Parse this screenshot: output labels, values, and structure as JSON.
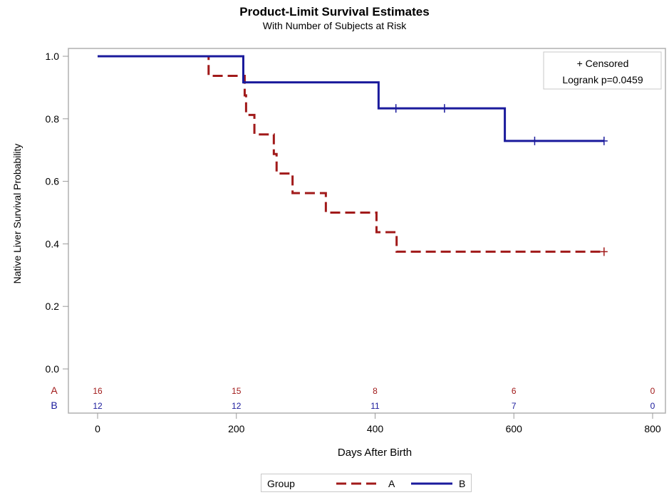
{
  "chart_data": {
    "type": "line",
    "title": "Product-Limit Survival Estimates",
    "subtitle": "With Number of Subjects at Risk",
    "xlabel": "Days After Birth",
    "ylabel": "Native Liver Survival Probability",
    "xlim": [
      0,
      800
    ],
    "ylim": [
      0,
      1
    ],
    "xticks": [
      "0",
      "200",
      "400",
      "600",
      "800"
    ],
    "xtick_values": [
      0,
      200,
      400,
      600,
      800
    ],
    "yticks": [
      "0.0",
      "0.2",
      "0.4",
      "0.6",
      "0.8",
      "1.0"
    ],
    "ytick_values": [
      0,
      0.2,
      0.4,
      0.6,
      0.8,
      1.0
    ],
    "grid": false,
    "inset": {
      "censored_label": "+ Censored",
      "logrank_label": "Logrank p=0.0459"
    },
    "legend": {
      "title": "Group",
      "position": "bottom",
      "entries": [
        "A",
        "B"
      ]
    },
    "series": [
      {
        "name": "A",
        "color": "#a11a1a",
        "style": "dashed",
        "steps": [
          {
            "x": 0,
            "y": 1.0
          },
          {
            "x": 160,
            "y": 0.9375
          },
          {
            "x": 212,
            "y": 0.875
          },
          {
            "x": 214,
            "y": 0.8125
          },
          {
            "x": 226,
            "y": 0.75
          },
          {
            "x": 254,
            "y": 0.6875
          },
          {
            "x": 258,
            "y": 0.625
          },
          {
            "x": 281,
            "y": 0.5625
          },
          {
            "x": 329,
            "y": 0.5
          },
          {
            "x": 402,
            "y": 0.4375
          },
          {
            "x": 431,
            "y": 0.375
          }
        ],
        "end_x": 730,
        "censored": [
          730
        ]
      },
      {
        "name": "B",
        "color": "#1a1a9c",
        "style": "solid",
        "steps": [
          {
            "x": 0,
            "y": 1.0
          },
          {
            "x": 210,
            "y": 0.9167
          },
          {
            "x": 405,
            "y": 0.8333
          },
          {
            "x": 587,
            "y": 0.7292
          }
        ],
        "end_x": 730,
        "censored": [
          430,
          500,
          630,
          730
        ]
      }
    ],
    "at_risk": {
      "times": [
        0,
        200,
        400,
        600,
        800
      ],
      "rows": [
        {
          "group": "A",
          "color": "#a11a1a",
          "counts": [
            "16",
            "15",
            "8",
            "6",
            "0"
          ]
        },
        {
          "group": "B",
          "color": "#1a1a9c",
          "counts": [
            "12",
            "12",
            "11",
            "7",
            "0"
          ]
        }
      ]
    }
  }
}
